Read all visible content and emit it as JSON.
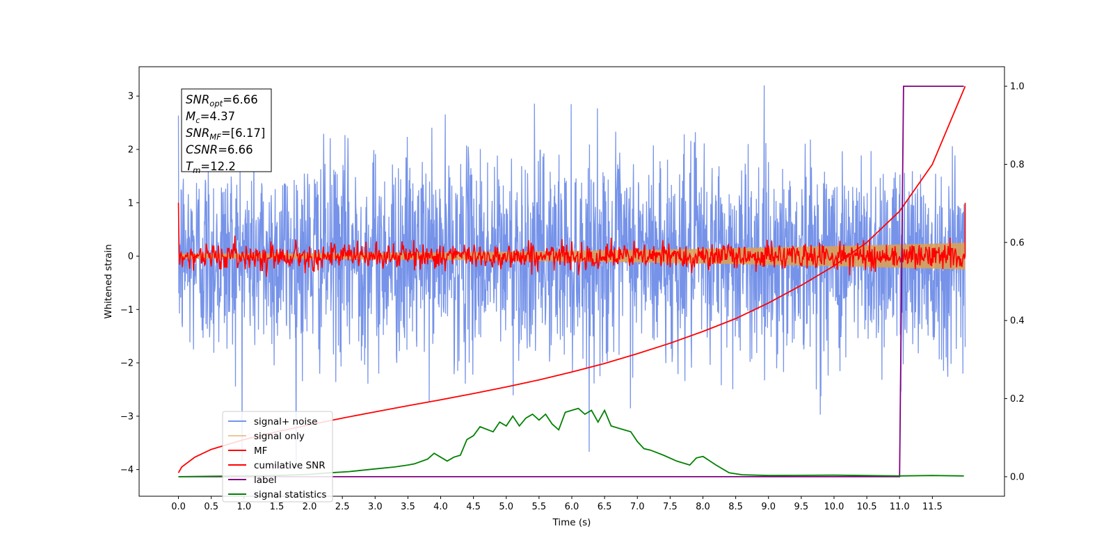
{
  "chart_data": {
    "type": "line",
    "xlabel": "Time (s)",
    "ylabel": "Whitened strain",
    "xlim": [
      -0.6,
      12.6
    ],
    "ylim": [
      -4.5,
      3.55
    ],
    "y2lim": [
      -0.05,
      1.05
    ],
    "x_ticks": [
      "0.0",
      "0.5",
      "1.0",
      "1.5",
      "2.0",
      "2.5",
      "3.0",
      "3.5",
      "4.0",
      "4.5",
      "5.0",
      "5.5",
      "6.0",
      "6.5",
      "7.0",
      "7.5",
      "8.0",
      "8.5",
      "9.0",
      "9.5",
      "10.0",
      "10.5",
      "11.0",
      "11.5"
    ],
    "y_ticks": [
      "3",
      "2",
      "1",
      "0",
      "−1",
      "−2",
      "−3",
      "−4"
    ],
    "y2_ticks": [
      "1.0",
      "0.8",
      "0.6",
      "0.4",
      "0.2",
      "0.0"
    ],
    "grid": false,
    "legend_position": "lower-left",
    "annotation": {
      "lines": [
        {
          "label": "SNR",
          "sub": "opt",
          "value": "=6.66"
        },
        {
          "label": "M",
          "sub": "c",
          "value": "=4.37"
        },
        {
          "label": "SNR",
          "sub": "MF",
          "value": "=[6.17]"
        },
        {
          "label": "CSNR",
          "sub": "",
          "value": "=6.66"
        },
        {
          "label": "T",
          "sub": "m",
          "value": "=12.2"
        }
      ]
    },
    "series": [
      {
        "name": "signal+ noise",
        "color": "#4169e1",
        "axis": "left",
        "kind": "noisy",
        "t_range": [
          0,
          12.0
        ],
        "mean": 0.0,
        "std": 0.95,
        "min": -4.1,
        "max": 3.2
      },
      {
        "name": "signal only",
        "color": "#e0a050",
        "axis": "left",
        "kind": "band",
        "t_range": [
          0,
          12.0
        ],
        "amplitude_start": 0.05,
        "amplitude_end": 0.25
      },
      {
        "name": "MF",
        "color": "#ff0000",
        "axis": "left",
        "kind": "noisy",
        "t_range": [
          0,
          12.0
        ],
        "mean": 0.0,
        "std": 0.12,
        "start_value": 1.0,
        "end_value": 1.0
      },
      {
        "name": "cumilative SNR",
        "color": "#ff0000",
        "axis": "right",
        "kind": "curve",
        "x": [
          0.0,
          0.05,
          0.25,
          0.5,
          1.0,
          1.5,
          2.0,
          2.5,
          3.0,
          3.5,
          4.0,
          4.5,
          5.0,
          5.5,
          6.0,
          6.5,
          7.0,
          7.5,
          8.0,
          8.5,
          9.0,
          9.5,
          10.0,
          10.5,
          11.0,
          11.5,
          12.0
        ],
        "y": [
          0.01,
          0.025,
          0.05,
          0.07,
          0.095,
          0.115,
          0.133,
          0.15,
          0.166,
          0.182,
          0.197,
          0.213,
          0.23,
          0.248,
          0.268,
          0.29,
          0.315,
          0.342,
          0.372,
          0.405,
          0.445,
          0.49,
          0.54,
          0.6,
          0.68,
          0.8,
          1.0
        ]
      },
      {
        "name": "label",
        "color": "#800080",
        "axis": "right",
        "kind": "curve",
        "x": [
          0.0,
          11.0,
          11.06,
          11.98
        ],
        "y": [
          0.0,
          0.0,
          1.0,
          1.0
        ]
      },
      {
        "name": "signal statistics",
        "color": "#008000",
        "axis": "right",
        "kind": "curve",
        "x": [
          0.0,
          0.5,
          1.0,
          1.5,
          2.0,
          2.3,
          2.6,
          3.0,
          3.3,
          3.5,
          3.6,
          3.8,
          3.9,
          4.0,
          4.1,
          4.2,
          4.3,
          4.4,
          4.5,
          4.6,
          4.8,
          4.9,
          5.0,
          5.1,
          5.2,
          5.3,
          5.4,
          5.5,
          5.6,
          5.7,
          5.8,
          5.9,
          6.0,
          6.1,
          6.2,
          6.3,
          6.4,
          6.5,
          6.6,
          6.8,
          6.9,
          7.0,
          7.1,
          7.2,
          7.4,
          7.6,
          7.8,
          7.9,
          8.0,
          8.2,
          8.4,
          8.6,
          9.0,
          10.0,
          11.0,
          11.5,
          11.98
        ],
        "y": [
          0.0,
          0.001,
          0.002,
          0.003,
          0.006,
          0.01,
          0.013,
          0.02,
          0.025,
          0.03,
          0.033,
          0.045,
          0.06,
          0.05,
          0.04,
          0.05,
          0.055,
          0.095,
          0.105,
          0.128,
          0.115,
          0.14,
          0.13,
          0.155,
          0.13,
          0.15,
          0.16,
          0.145,
          0.16,
          0.135,
          0.12,
          0.165,
          0.17,
          0.175,
          0.16,
          0.17,
          0.14,
          0.17,
          0.13,
          0.12,
          0.115,
          0.09,
          0.072,
          0.068,
          0.055,
          0.04,
          0.03,
          0.048,
          0.052,
          0.03,
          0.01,
          0.005,
          0.003,
          0.004,
          0.002,
          0.003,
          0.002
        ]
      }
    ]
  }
}
